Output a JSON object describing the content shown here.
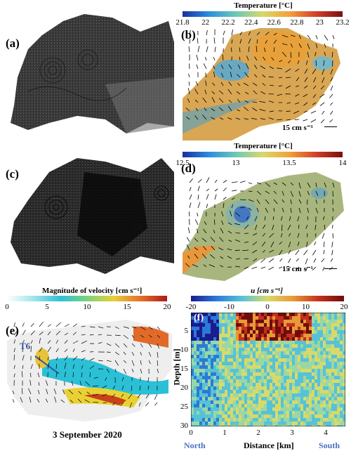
{
  "panels": {
    "a": {
      "label": "(a)"
    },
    "b": {
      "label": "(b)",
      "colorbar_title": "Temperature [°C]",
      "ticks": [
        "21.8",
        "22",
        "22.2",
        "22.4",
        "22.6",
        "22.8",
        "23",
        "23.2"
      ],
      "scale": "15 cm s⁻¹"
    },
    "c": {
      "label": "(c)"
    },
    "d": {
      "label": "(d)",
      "colorbar_title": "Temperature [°C]",
      "ticks": [
        "12.5",
        "13",
        "13.5",
        "14"
      ],
      "scale": "15 cm s⁻¹"
    },
    "e": {
      "label": "(e)",
      "colorbar_title": "Magnitude of velocity [cm s⁻¹]",
      "ticks": [
        "0",
        "5",
        "10",
        "15",
        "20"
      ],
      "transect_label": "T6",
      "date": "3 September 2020"
    },
    "f": {
      "label": "(f)",
      "colorbar_title": "u [cm s⁻¹]",
      "ticks": [
        "-20",
        "-10",
        "0",
        "10",
        "20"
      ],
      "ylabel": "Depth [m]",
      "xlabel": "Distance [km]",
      "yticks": [
        "5",
        "10",
        "15",
        "20",
        "25",
        "30"
      ],
      "xticks": [
        "0",
        "1",
        "2",
        "3",
        "4"
      ],
      "left_label": "North",
      "right_label": "South"
    }
  },
  "colors": {
    "transect": "#3b4fa0",
    "north_south": "#4a6fc4"
  }
}
